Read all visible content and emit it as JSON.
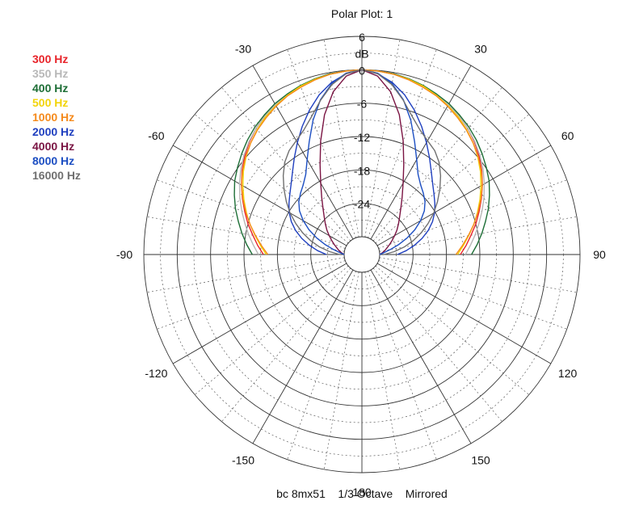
{
  "chart_data": {
    "type": "polar",
    "title": "Polar Plot: 1",
    "subtitle": "bc 8mx51    1/3 Octave    Mirrored",
    "radial_label": "dB",
    "radial_range": [
      -30,
      6
    ],
    "radial_ticks": [
      6,
      0,
      -6,
      -12,
      -18,
      -24
    ],
    "radial_tick_labels": [
      "6",
      "0",
      "-6",
      "-12",
      "-18",
      "-24"
    ],
    "angle_ticks": [
      0,
      30,
      60,
      90,
      120,
      150,
      180,
      -150,
      -120,
      -90,
      -60,
      -30
    ],
    "angle_tick_labels": [
      "0",
      "30",
      "60",
      "90",
      "120",
      "150",
      "180",
      "-150",
      "-120",
      "-90",
      "-60",
      "-30"
    ],
    "angles_deg": [
      0,
      5,
      10,
      15,
      20,
      25,
      30,
      35,
      40,
      45,
      50,
      55,
      60,
      65,
      70,
      75,
      80,
      85,
      90
    ],
    "mirrored": true,
    "grid": true,
    "legend_position": "top-left",
    "series": [
      {
        "name": "300 Hz",
        "color": "#e8242a",
        "values": [
          0,
          -0.1,
          -0.3,
          -0.6,
          -1.0,
          -1.5,
          -2.1,
          -2.8,
          -3.6,
          -4.6,
          -5.7,
          -6.9,
          -8.2,
          -9.5,
          -10.8,
          -12.0,
          -13.3,
          -14.4,
          -15.5
        ]
      },
      {
        "name": "350 Hz",
        "color": "#b8b8b8",
        "values": [
          0,
          -0.1,
          -0.3,
          -0.6,
          -1.0,
          -1.5,
          -2.1,
          -2.8,
          -3.6,
          -4.5,
          -5.5,
          -6.6,
          -7.8,
          -9.0,
          -10.2,
          -11.4,
          -12.5,
          -13.6,
          -14.6
        ]
      },
      {
        "name": "400 Hz",
        "color": "#1d6e36",
        "values": [
          0,
          -0.1,
          -0.2,
          -0.5,
          -0.9,
          -1.4,
          -1.9,
          -2.6,
          -3.3,
          -4.1,
          -5.0,
          -5.9,
          -6.8,
          -7.9,
          -9.0,
          -10.2,
          -11.3,
          -12.4,
          -13.5
        ]
      },
      {
        "name": "500 Hz",
        "color": "#f2d40a",
        "values": [
          0,
          -0.1,
          -0.3,
          -0.6,
          -1.0,
          -1.6,
          -2.3,
          -3.0,
          -3.9,
          -4.9,
          -6.0,
          -7.2,
          -8.5,
          -9.8,
          -11.1,
          -12.4,
          -13.7,
          -14.9,
          -16.0
        ]
      },
      {
        "name": "1000 Hz",
        "color": "#f58a1c",
        "values": [
          0,
          -0.1,
          -0.3,
          -0.7,
          -1.2,
          -1.7,
          -2.4,
          -3.2,
          -4.0,
          -4.9,
          -5.9,
          -7.0,
          -8.2,
          -9.6,
          -11.0,
          -12.4,
          -13.8,
          -15.1,
          -16.3
        ]
      },
      {
        "name": "2000 Hz",
        "color": "#1f3fbf",
        "values": [
          0,
          -0.6,
          -1.8,
          -3.5,
          -5.6,
          -7.8,
          -10.0,
          -12.0,
          -13.8,
          -15.2,
          -16.3,
          -17.2,
          -18.1,
          -19.2,
          -20.5,
          -22.0,
          -23.6,
          -25.2,
          -26.8
        ]
      },
      {
        "name": "4000 Hz",
        "color": "#7a1443",
        "values": [
          0,
          -1.0,
          -3.5,
          -7.2,
          -11.5,
          -15.4,
          -18.4,
          -20.6,
          -22.3,
          -23.6,
          -24.6,
          -25.5,
          -26.4,
          -27.2,
          -27.9,
          -28.5,
          -29.0,
          -29.5,
          -30.0
        ]
      },
      {
        "name": "8000 Hz",
        "color": "#1c4ec2",
        "values": [
          0,
          -0.5,
          -2.0,
          -4.4,
          -7.5,
          -10.8,
          -13.5,
          -15.6,
          -16.8,
          -17.6,
          -18.4,
          -19.5,
          -21.0,
          -22.7,
          -24.6,
          -26.4,
          -28.0,
          -29.2,
          -30.0
        ]
      },
      {
        "name": "16000 Hz",
        "color": "#707070",
        "values": [
          0,
          -0.6,
          -2.2,
          -4.5,
          -6.8,
          -8.5,
          -9.6,
          -10.4,
          -11.6,
          -13.2,
          -14.9,
          -16.6,
          -18.3,
          -20.1,
          -21.9,
          -23.7,
          -25.5,
          -27.4,
          -29.2
        ]
      }
    ]
  }
}
